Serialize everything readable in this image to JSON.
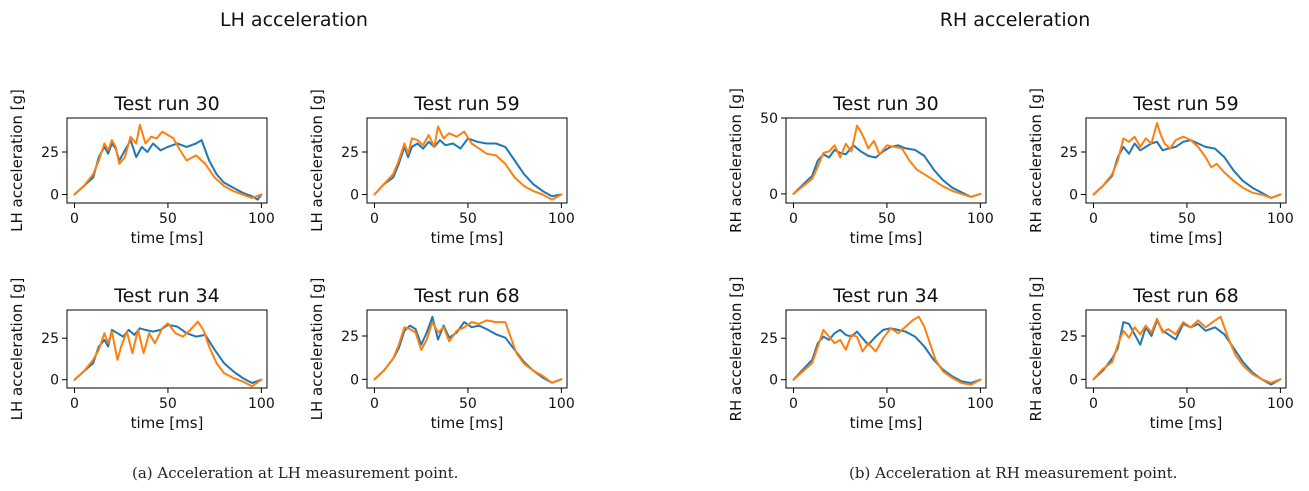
{
  "figure": {
    "panels": [
      {
        "title": "LH acceleration",
        "caption": "(a) Acceleration at LH measurement point."
      },
      {
        "title": "RH acceleration",
        "caption": "(b) Acceleration at RH measurement point."
      }
    ],
    "series_colors": [
      "#1f77b4",
      "#ff7f0e"
    ]
  },
  "chart_data": [
    {
      "type": "line",
      "group": "LH acceleration",
      "title": "Test run 30",
      "xlabel": "time [ms]",
      "ylabel": "LH acceleration [g]",
      "xlim": [
        -4,
        103
      ],
      "ylim": [
        -5,
        45
      ],
      "xticks": [
        0,
        50,
        100
      ],
      "yticks": [
        0,
        25
      ],
      "series": [
        {
          "color": "#1f77b4",
          "x": [
            0,
            5,
            10,
            13,
            16,
            18,
            20,
            22,
            24,
            27,
            30,
            33,
            36,
            39,
            42,
            46,
            50,
            55,
            60,
            65,
            68,
            72,
            76,
            80,
            85,
            90,
            95,
            98,
            100
          ],
          "y": [
            0,
            5,
            10,
            22,
            28,
            24,
            30,
            27,
            20,
            26,
            32,
            22,
            28,
            25,
            30,
            26,
            28,
            30,
            28,
            30,
            32,
            20,
            12,
            7,
            4,
            1,
            -1,
            -3,
            0
          ]
        },
        {
          "color": "#ff7f0e",
          "x": [
            0,
            5,
            10,
            13,
            16,
            18,
            20,
            22,
            24,
            27,
            30,
            33,
            35,
            38,
            41,
            44,
            47,
            50,
            53,
            56,
            60,
            65,
            70,
            75,
            80,
            85,
            90,
            95,
            100
          ],
          "y": [
            0,
            5,
            12,
            20,
            30,
            26,
            32,
            28,
            18,
            22,
            34,
            30,
            41,
            30,
            34,
            33,
            37,
            35,
            33,
            27,
            20,
            23,
            18,
            10,
            5,
            2,
            0,
            -2,
            0
          ]
        }
      ]
    },
    {
      "type": "line",
      "group": "LH acceleration",
      "title": "Test run 59",
      "xlabel": "time [ms]",
      "ylabel": "LH acceleration [g]",
      "xlim": [
        -4,
        103
      ],
      "ylim": [
        -5,
        45
      ],
      "xticks": [
        0,
        50,
        100
      ],
      "yticks": [
        0,
        25
      ],
      "series": [
        {
          "color": "#1f77b4",
          "x": [
            0,
            5,
            10,
            13,
            16,
            18,
            20,
            23,
            26,
            29,
            32,
            35,
            38,
            42,
            46,
            50,
            55,
            60,
            65,
            70,
            75,
            80,
            85,
            90,
            95,
            100
          ],
          "y": [
            0,
            6,
            10,
            18,
            28,
            22,
            28,
            30,
            27,
            31,
            28,
            32,
            29,
            30,
            27,
            33,
            31,
            30,
            30,
            28,
            20,
            12,
            6,
            2,
            -1,
            0
          ]
        },
        {
          "color": "#ff7f0e",
          "x": [
            0,
            5,
            10,
            13,
            16,
            18,
            20,
            23,
            26,
            29,
            32,
            34,
            37,
            40,
            44,
            48,
            52,
            56,
            60,
            65,
            70,
            75,
            80,
            85,
            90,
            95,
            100
          ],
          "y": [
            0,
            6,
            12,
            20,
            30,
            24,
            33,
            32,
            29,
            35,
            28,
            40,
            33,
            36,
            34,
            37,
            30,
            27,
            24,
            23,
            18,
            10,
            5,
            2,
            0,
            -3,
            0
          ]
        }
      ]
    },
    {
      "type": "line",
      "group": "LH acceleration",
      "title": "Test run 34",
      "xlabel": "time [ms]",
      "ylabel": "LH acceleration [g]",
      "xlim": [
        -4,
        103
      ],
      "ylim": [
        -5,
        42
      ],
      "xticks": [
        0,
        50,
        100
      ],
      "yticks": [
        0,
        25
      ],
      "series": [
        {
          "color": "#1f77b4",
          "x": [
            0,
            5,
            10,
            13,
            16,
            18,
            20,
            23,
            26,
            29,
            32,
            35,
            38,
            42,
            46,
            50,
            55,
            60,
            65,
            70,
            75,
            80,
            85,
            90,
            95,
            100
          ],
          "y": [
            0,
            5,
            10,
            20,
            24,
            20,
            30,
            28,
            26,
            30,
            27,
            31,
            30,
            29,
            30,
            33,
            32,
            28,
            26,
            27,
            18,
            10,
            5,
            1,
            -2,
            0
          ]
        },
        {
          "color": "#ff7f0e",
          "x": [
            0,
            5,
            10,
            13,
            16,
            18,
            20,
            23,
            25,
            28,
            31,
            34,
            37,
            40,
            43,
            47,
            50,
            54,
            58,
            62,
            66,
            69,
            72,
            76,
            80,
            85,
            90,
            95,
            100
          ],
          "y": [
            0,
            5,
            12,
            18,
            28,
            22,
            29,
            12,
            20,
            29,
            16,
            30,
            16,
            28,
            22,
            31,
            34,
            28,
            26,
            30,
            35,
            30,
            20,
            10,
            4,
            1,
            -1,
            -4,
            0
          ]
        }
      ]
    },
    {
      "type": "line",
      "group": "LH acceleration",
      "title": "Test run 68",
      "xlabel": "time [ms]",
      "ylabel": "LH acceleration [g]",
      "xlim": [
        -4,
        103
      ],
      "ylim": [
        -5,
        40
      ],
      "xticks": [
        0,
        50,
        100
      ],
      "yticks": [
        0,
        25
      ],
      "series": [
        {
          "color": "#1f77b4",
          "x": [
            0,
            5,
            10,
            13,
            16,
            19,
            22,
            25,
            28,
            31,
            34,
            37,
            40,
            44,
            48,
            52,
            56,
            60,
            65,
            70,
            75,
            80,
            85,
            90,
            95,
            100
          ],
          "y": [
            0,
            5,
            12,
            18,
            28,
            31,
            29,
            20,
            27,
            36,
            23,
            31,
            24,
            27,
            33,
            30,
            31,
            29,
            26,
            24,
            17,
            10,
            5,
            1,
            -2,
            0
          ]
        },
        {
          "color": "#ff7f0e",
          "x": [
            0,
            5,
            10,
            13,
            16,
            19,
            22,
            25,
            28,
            31,
            34,
            37,
            40,
            44,
            48,
            52,
            56,
            60,
            65,
            70,
            73,
            76,
            80,
            85,
            90,
            95,
            100
          ],
          "y": [
            0,
            5,
            12,
            20,
            30,
            29,
            27,
            17,
            23,
            33,
            27,
            30,
            22,
            28,
            30,
            33,
            32,
            34,
            33,
            33,
            24,
            15,
            9,
            5,
            2,
            -2,
            0
          ]
        }
      ]
    },
    {
      "type": "line",
      "group": "RH acceleration",
      "title": "Test run 30",
      "xlabel": "time [ms]",
      "ylabel": "RH acceleration [g]",
      "xlim": [
        -4,
        103
      ],
      "ylim": [
        -6,
        50
      ],
      "xticks": [
        0,
        50,
        100
      ],
      "yticks": [
        0,
        50
      ],
      "series": [
        {
          "color": "#1f77b4",
          "x": [
            0,
            5,
            10,
            13,
            16,
            19,
            22,
            25,
            28,
            32,
            36,
            40,
            44,
            48,
            52,
            56,
            60,
            65,
            70,
            75,
            80,
            85,
            90,
            95,
            100
          ],
          "y": [
            0,
            6,
            12,
            22,
            26,
            24,
            29,
            27,
            26,
            32,
            28,
            25,
            24,
            28,
            31,
            32,
            30,
            29,
            25,
            16,
            9,
            4,
            1,
            -2,
            0
          ]
        },
        {
          "color": "#ff7f0e",
          "x": [
            0,
            5,
            10,
            13,
            16,
            19,
            22,
            25,
            28,
            31,
            34,
            36,
            38,
            40,
            43,
            46,
            50,
            54,
            58,
            62,
            66,
            70,
            75,
            80,
            85,
            90,
            95,
            100
          ],
          "y": [
            0,
            5,
            10,
            18,
            27,
            28,
            32,
            24,
            33,
            28,
            45,
            41,
            36,
            30,
            35,
            26,
            32,
            31,
            30,
            22,
            16,
            13,
            9,
            5,
            2,
            0,
            -2,
            0
          ]
        }
      ]
    },
    {
      "type": "line",
      "group": "RH acceleration",
      "title": "Test run 59",
      "xlabel": "time [ms]",
      "ylabel": "RH acceleration [g]",
      "xlim": [
        -4,
        103
      ],
      "ylim": [
        -5,
        45
      ],
      "xticks": [
        0,
        50,
        100
      ],
      "yticks": [
        0,
        25
      ],
      "series": [
        {
          "color": "#1f77b4",
          "x": [
            0,
            5,
            10,
            13,
            16,
            19,
            22,
            25,
            28,
            31,
            34,
            37,
            40,
            44,
            48,
            52,
            56,
            60,
            65,
            70,
            75,
            80,
            85,
            90,
            95,
            100
          ],
          "y": [
            0,
            5,
            11,
            22,
            28,
            24,
            30,
            26,
            28,
            30,
            31,
            26,
            27,
            28,
            31,
            32,
            30,
            28,
            27,
            22,
            14,
            8,
            4,
            1,
            -2,
            0
          ]
        },
        {
          "color": "#ff7f0e",
          "x": [
            0,
            5,
            10,
            13,
            16,
            19,
            22,
            25,
            28,
            31,
            34,
            36,
            38,
            41,
            44,
            48,
            52,
            56,
            60,
            63,
            66,
            70,
            75,
            80,
            85,
            90,
            95,
            100
          ],
          "y": [
            0,
            5,
            12,
            20,
            33,
            31,
            34,
            28,
            33,
            30,
            42,
            35,
            30,
            27,
            32,
            34,
            32,
            28,
            22,
            16,
            18,
            13,
            8,
            4,
            1,
            0,
            -2,
            0
          ]
        }
      ]
    },
    {
      "type": "line",
      "group": "RH acceleration",
      "title": "Test run 34",
      "xlabel": "time [ms]",
      "ylabel": "RH acceleration [g]",
      "xlim": [
        -4,
        103
      ],
      "ylim": [
        -5,
        42
      ],
      "xticks": [
        0,
        50,
        100
      ],
      "yticks": [
        0,
        25
      ],
      "series": [
        {
          "color": "#1f77b4",
          "x": [
            0,
            5,
            10,
            13,
            16,
            19,
            22,
            25,
            28,
            31,
            34,
            37,
            40,
            44,
            48,
            52,
            56,
            60,
            65,
            70,
            75,
            80,
            85,
            90,
            95,
            100
          ],
          "y": [
            0,
            6,
            12,
            22,
            26,
            24,
            28,
            30,
            27,
            26,
            29,
            25,
            21,
            26,
            30,
            31,
            30,
            29,
            26,
            20,
            12,
            6,
            2,
            -1,
            -2,
            0
          ]
        },
        {
          "color": "#ff7f0e",
          "x": [
            0,
            5,
            10,
            13,
            16,
            19,
            22,
            25,
            28,
            31,
            34,
            37,
            40,
            44,
            48,
            52,
            56,
            60,
            64,
            67,
            70,
            73,
            76,
            80,
            85,
            90,
            95,
            100
          ],
          "y": [
            0,
            5,
            10,
            20,
            30,
            26,
            22,
            24,
            18,
            27,
            26,
            17,
            22,
            17,
            25,
            31,
            28,
            32,
            36,
            38,
            32,
            22,
            12,
            5,
            1,
            -2,
            -3,
            0
          ]
        }
      ]
    },
    {
      "type": "line",
      "group": "RH acceleration",
      "title": "Test run 68",
      "xlabel": "time [ms]",
      "ylabel": "RH acceleration [g]",
      "xlim": [
        -4,
        103
      ],
      "ylim": [
        -5,
        40
      ],
      "xticks": [
        0,
        50,
        100
      ],
      "yticks": [
        0,
        25
      ],
      "series": [
        {
          "color": "#1f77b4",
          "x": [
            0,
            5,
            10,
            13,
            16,
            19,
            22,
            25,
            28,
            31,
            34,
            37,
            40,
            44,
            48,
            52,
            56,
            60,
            65,
            70,
            75,
            80,
            85,
            90,
            95,
            100
          ],
          "y": [
            0,
            5,
            12,
            18,
            33,
            32,
            26,
            20,
            30,
            25,
            34,
            28,
            26,
            23,
            32,
            30,
            32,
            28,
            30,
            26,
            18,
            10,
            4,
            0,
            -3,
            0
          ]
        },
        {
          "color": "#ff7f0e",
          "x": [
            0,
            5,
            10,
            13,
            16,
            19,
            22,
            25,
            28,
            31,
            34,
            37,
            40,
            44,
            48,
            52,
            56,
            60,
            65,
            68,
            72,
            76,
            80,
            85,
            90,
            95,
            100
          ],
          "y": [
            0,
            6,
            10,
            20,
            28,
            24,
            30,
            26,
            31,
            27,
            35,
            27,
            29,
            26,
            33,
            30,
            34,
            30,
            34,
            36,
            24,
            14,
            8,
            3,
            0,
            -2,
            0
          ]
        }
      ]
    }
  ]
}
